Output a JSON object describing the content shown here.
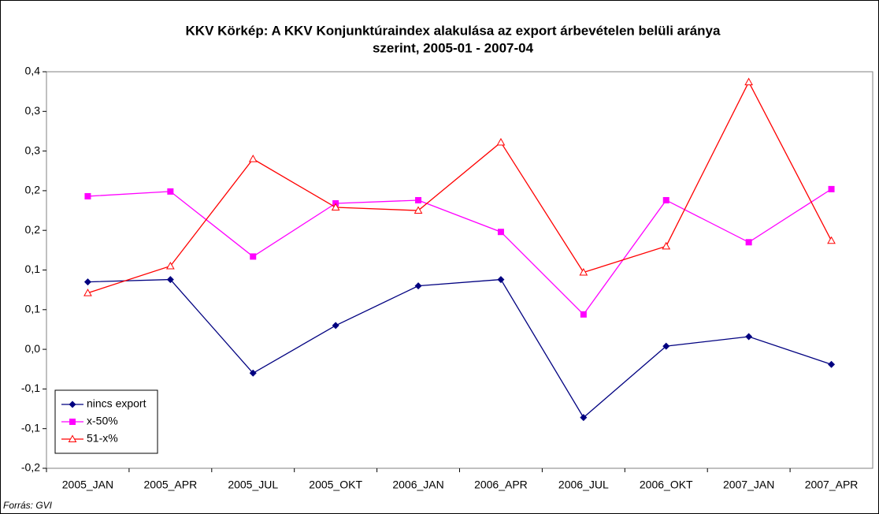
{
  "chart_data": {
    "type": "line",
    "title": [
      "KKV Körkép: A KKV Konjunktúraindex alakulása az export árbevételen belüli aránya",
      "szerint, 2005-01 - 2007-04"
    ],
    "source": "Forrás: GVI",
    "categories": [
      "2005_JAN",
      "2005_APR",
      "2005_JUL",
      "2005_OKT",
      "2006_JAN",
      "2006_APR",
      "2006_JUL",
      "2006_OKT",
      "2007_JAN",
      "2007_APR"
    ],
    "series": [
      {
        "name": "nincs export",
        "color": "#000080",
        "marker": "diamond",
        "values": [
          0.085,
          0.088,
          -0.03,
          0.03,
          0.08,
          0.088,
          -0.086,
          0.004,
          0.016,
          -0.019
        ]
      },
      {
        "name": "x-50%",
        "color": "#ff00ff",
        "marker": "square",
        "values": [
          0.193,
          0.199,
          0.117,
          0.184,
          0.188,
          0.148,
          0.044,
          0.188,
          0.135,
          0.202
        ]
      },
      {
        "name": "51-x%",
        "color": "#ff0000",
        "marker": "triangle",
        "values": [
          0.071,
          0.105,
          0.24,
          0.179,
          0.175,
          0.261,
          0.097,
          0.13,
          0.337,
          0.137
        ]
      }
    ],
    "ylim": [
      -0.15,
      0.35
    ],
    "yticks": [
      {
        "value": -0.15,
        "label": "-0,2"
      },
      {
        "value": -0.1,
        "label": "-0,1"
      },
      {
        "value": -0.05,
        "label": "-0,1"
      },
      {
        "value": 0,
        "label": "0,0"
      },
      {
        "value": 0.05,
        "label": "0,1"
      },
      {
        "value": 0.1,
        "label": "0,1"
      },
      {
        "value": 0.15,
        "label": "0,2"
      },
      {
        "value": 0.2,
        "label": "0,2"
      },
      {
        "value": 0.25,
        "label": "0,3"
      },
      {
        "value": 0.3,
        "label": "0,3"
      },
      {
        "value": 0.35,
        "label": "0,4"
      }
    ],
    "legend": "lower-left"
  }
}
